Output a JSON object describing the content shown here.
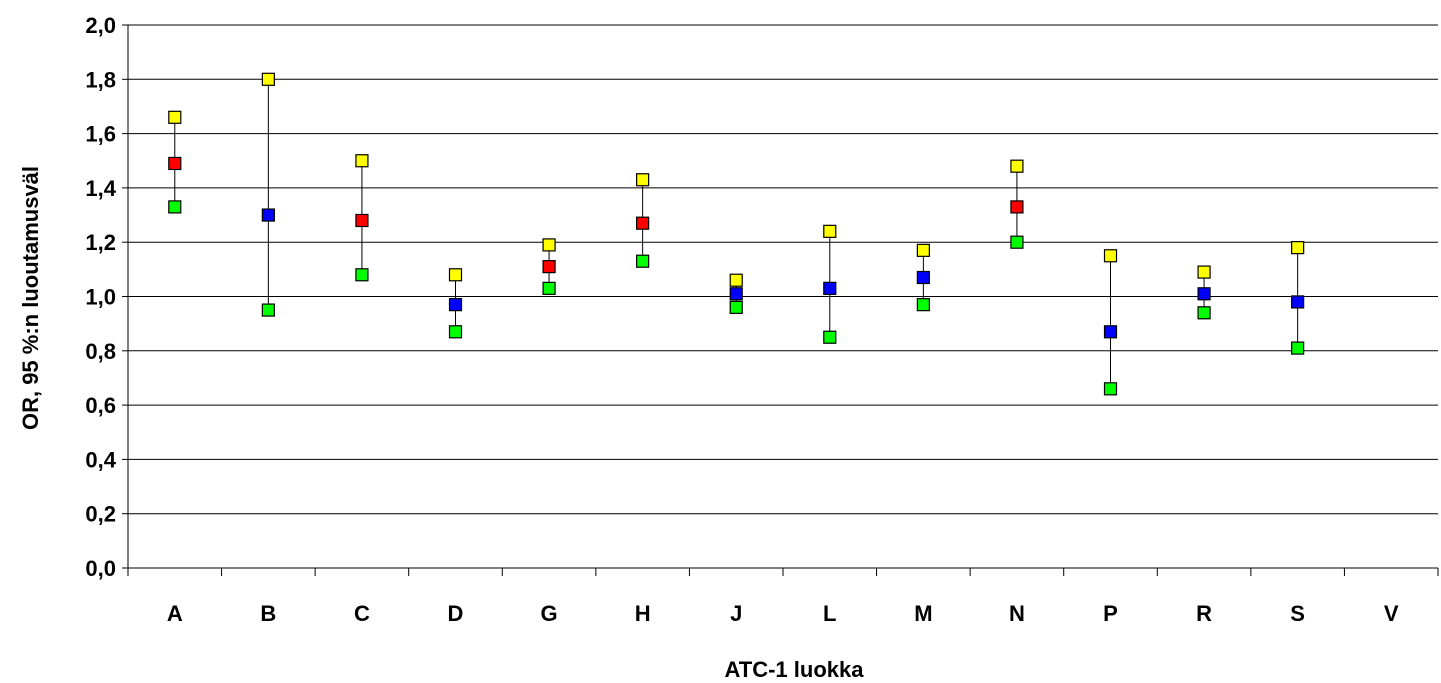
{
  "chart_data": {
    "type": "scatter",
    "title": "",
    "xlabel": "ATC-1 luokka",
    "ylabel": "OR, 95 %:n luoutamusväl",
    "categories": [
      "A",
      "B",
      "C",
      "D",
      "G",
      "H",
      "J",
      "L",
      "M",
      "N",
      "P",
      "R",
      "S",
      "V"
    ],
    "ylim": [
      0,
      2.0
    ],
    "ytick_values": [
      0.0,
      0.2,
      0.4,
      0.6,
      0.8,
      1.0,
      1.2,
      1.4,
      1.6,
      1.8,
      2.0
    ],
    "ytick_labels": [
      "0,0",
      "0,2",
      "0,4",
      "0,6",
      "0,8",
      "1,0",
      "1,2",
      "1,4",
      "1,6",
      "1,8",
      "2,0"
    ],
    "grid": true,
    "points": [
      {
        "category": "A",
        "lower": 1.33,
        "or": 1.49,
        "upper": 1.66,
        "significant": true
      },
      {
        "category": "B",
        "lower": 0.95,
        "or": 1.3,
        "upper": 1.8,
        "significant": false
      },
      {
        "category": "C",
        "lower": 1.08,
        "or": 1.28,
        "upper": 1.5,
        "significant": true
      },
      {
        "category": "D",
        "lower": 0.87,
        "or": 0.97,
        "upper": 1.08,
        "significant": false
      },
      {
        "category": "G",
        "lower": 1.03,
        "or": 1.11,
        "upper": 1.19,
        "significant": true
      },
      {
        "category": "H",
        "lower": 1.13,
        "or": 1.27,
        "upper": 1.43,
        "significant": true
      },
      {
        "category": "J",
        "lower": 0.96,
        "or": 1.01,
        "upper": 1.06,
        "significant": false
      },
      {
        "category": "L",
        "lower": 0.85,
        "or": 1.03,
        "upper": 1.24,
        "significant": false
      },
      {
        "category": "M",
        "lower": 0.97,
        "or": 1.07,
        "upper": 1.17,
        "significant": false
      },
      {
        "category": "N",
        "lower": 1.2,
        "or": 1.33,
        "upper": 1.48,
        "significant": true
      },
      {
        "category": "P",
        "lower": 0.66,
        "or": 0.87,
        "upper": 1.15,
        "significant": false
      },
      {
        "category": "R",
        "lower": 0.94,
        "or": 1.01,
        "upper": 1.09,
        "significant": false
      },
      {
        "category": "S",
        "lower": 0.81,
        "or": 0.98,
        "upper": 1.18,
        "significant": false
      }
    ],
    "colors": {
      "upper": "#FFFF00",
      "lower": "#00FF00",
      "or_significant": "#FF0000",
      "or_not_significant": "#0000FF",
      "marker_border": "#000000",
      "gridline": "#000000",
      "whisker": "#000000"
    }
  }
}
